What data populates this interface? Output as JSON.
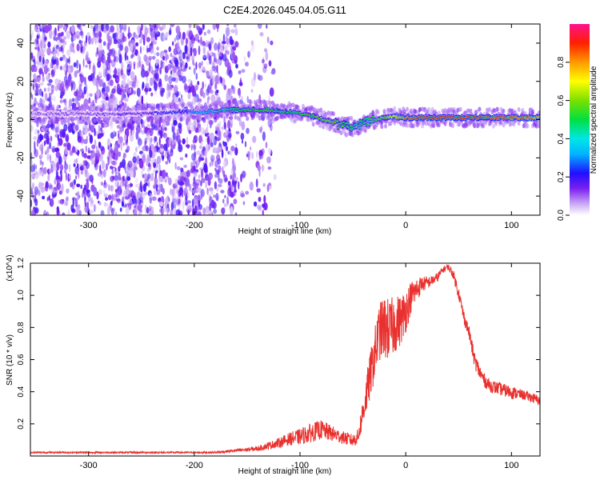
{
  "title": "C2E4.2026.045.04.05.G11",
  "colors": {
    "snr_line": "#e8312e",
    "axis": "#000000",
    "background": "#ffffff"
  },
  "chart_data": [
    {
      "type": "heatmap",
      "xlabel": "Height of straight line (km)",
      "ylabel": "Frequency (Hz)",
      "xlim": [
        -355,
        127
      ],
      "ylim": [
        -50,
        50
      ],
      "xticks": [
        -300,
        -200,
        -100,
        0,
        100
      ],
      "xtick_labels": [
        "-300",
        "-200",
        "-100",
        "0",
        "100"
      ],
      "yticks": [
        -40,
        -20,
        0,
        20,
        40
      ],
      "ytick_labels": [
        "-40",
        "-20",
        "0",
        "20",
        "40"
      ],
      "colorbar": {
        "label": "Normalized spectral amplitude",
        "range": [
          0,
          1
        ],
        "ticks": [
          0,
          0.2,
          0.4,
          0.6,
          0.8
        ],
        "tick_labels": [
          "0.0",
          "0.2",
          "0.4",
          "0.6",
          "0.8"
        ],
        "colormap": "rainbow"
      },
      "ridge": {
        "x": [
          -355,
          -300,
          -250,
          -210,
          -190,
          -170,
          -150,
          -130,
          -110,
          -90,
          -70,
          -55,
          -45,
          -35,
          -20,
          -10,
          0,
          20,
          60,
          100,
          127
        ],
        "y": [
          3,
          3,
          3,
          4,
          4,
          5,
          5,
          5,
          4,
          2,
          -1,
          -4,
          -3,
          -1,
          1,
          1.5,
          1,
          1,
          1,
          1,
          1
        ],
        "peak_amplitude": [
          0.1,
          0.12,
          0.15,
          0.25,
          0.35,
          0.45,
          0.5,
          0.55,
          0.5,
          0.55,
          0.6,
          0.5,
          0.45,
          0.5,
          0.6,
          0.7,
          0.85,
          0.9,
          0.9,
          0.85,
          0.8
        ]
      }
    },
    {
      "type": "line",
      "xlabel": "Height of straight line (km)",
      "ylabel": "SNR (10 * v/v)",
      "y_multiplier_label": "(x10^4)",
      "xlim": [
        -355,
        127
      ],
      "ylim": [
        0,
        1.2
      ],
      "xticks": [
        -300,
        -200,
        -100,
        0,
        100
      ],
      "xtick_labels": [
        "-300",
        "-200",
        "-100",
        "0",
        "100"
      ],
      "yticks": [
        0.2,
        0.4,
        0.6,
        0.8,
        1.0,
        1.2
      ],
      "ytick_labels": [
        "0.2",
        "0.4",
        "0.6",
        "0.8",
        "1.0",
        "1.2"
      ],
      "series": [
        {
          "x": [
            -355,
            -300,
            -250,
            -200,
            -180,
            -160,
            -140,
            -120,
            -110,
            -100,
            -90,
            -80,
            -70,
            -60,
            -50,
            -45,
            -40,
            -35,
            -30,
            -25,
            -20,
            -15,
            -10,
            -5,
            0,
            5,
            10,
            15,
            20,
            25,
            30,
            35,
            40,
            45,
            50,
            55,
            60,
            65,
            70,
            75,
            80,
            90,
            100,
            110,
            120,
            127
          ],
          "y": [
            0.02,
            0.02,
            0.02,
            0.02,
            0.02,
            0.03,
            0.04,
            0.07,
            0.09,
            0.1,
            0.12,
            0.14,
            0.12,
            0.1,
            0.08,
            0.1,
            0.25,
            0.4,
            0.55,
            0.7,
            0.72,
            0.7,
            0.75,
            0.78,
            0.85,
            0.95,
            1.0,
            1.05,
            1.06,
            1.08,
            1.1,
            1.15,
            1.17,
            1.12,
            1.0,
            0.85,
            0.75,
            0.58,
            0.5,
            0.45,
            0.42,
            0.4,
            0.38,
            0.37,
            0.35,
            0.33
          ],
          "noise_amplitude": [
            0.005,
            0.005,
            0.005,
            0.005,
            0.006,
            0.01,
            0.015,
            0.03,
            0.04,
            0.05,
            0.06,
            0.06,
            0.05,
            0.04,
            0.04,
            0.05,
            0.1,
            0.14,
            0.16,
            0.18,
            0.2,
            0.2,
            0.18,
            0.16,
            0.14,
            0.1,
            0.08,
            0.05,
            0.04,
            0.03,
            0.03,
            0.02,
            0.02,
            0.03,
            0.04,
            0.04,
            0.04,
            0.05,
            0.05,
            0.04,
            0.04,
            0.04,
            0.04,
            0.03,
            0.03,
            0.03
          ]
        }
      ]
    }
  ]
}
